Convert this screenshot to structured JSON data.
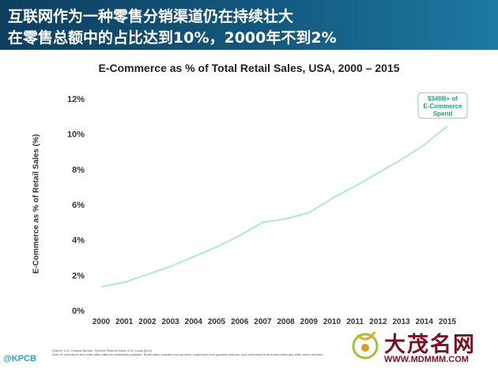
{
  "header": {
    "line1": "互联网作为一种零售分销渠道仍在持续壮大",
    "line2": "在零售总额中的占比达到10%，2000年不到2%"
  },
  "handle": "@KPCB",
  "source_lines": [
    "Source: U.S. Census Bureau, Federal Reserve Bank of St. Louis (5/16).",
    "Note: E-commerce and retail sales data are seasonally adjusted. Retail sales exclude food services, retail trade from gasoline stations, and retail trade from automobiles and other motor vehicles."
  ],
  "watermark": {
    "brand": "大茂名网",
    "url": "WWW.MDMMM.COM"
  },
  "colors": {
    "line": "#aee8cf",
    "accent": "#1c7aa3",
    "watermark": "#7a1020"
  },
  "chart_data": {
    "type": "line",
    "title": "E-Commerce as % of Total Retail Sales, USA, 2000 – 2015",
    "xlabel": "",
    "ylabel": "E-Commerce as % of Retail Sales (%)",
    "x": [
      2000,
      2001,
      2002,
      2003,
      2004,
      2005,
      2006,
      2007,
      2008,
      2009,
      2010,
      2011,
      2012,
      2013,
      2014,
      2015
    ],
    "x_tick_labels": [
      "2000",
      "2001",
      "2002",
      "2003",
      "2004",
      "2005",
      "2006",
      "2007",
      "2008",
      "2009",
      "2010",
      "2011",
      "2012",
      "2013",
      "2014",
      "2015"
    ],
    "ylim": [
      0,
      12
    ],
    "y_ticks": [
      0,
      2,
      4,
      6,
      8,
      10,
      12
    ],
    "y_tick_labels": [
      "0%",
      "2%",
      "4%",
      "6%",
      "8%",
      "10%",
      "12%"
    ],
    "series": [
      {
        "values": [
          1.35,
          1.6,
          2.05,
          2.5,
          3.05,
          3.6,
          4.25,
          5.0,
          5.2,
          5.55,
          6.35,
          7.05,
          7.8,
          8.55,
          9.4,
          10.45
        ]
      }
    ],
    "grid": false,
    "annotation": {
      "text_lines": [
        "$340B+ of",
        "E-Commerce",
        "Spend"
      ],
      "at_x": 2015,
      "at_y": 10.45
    }
  }
}
